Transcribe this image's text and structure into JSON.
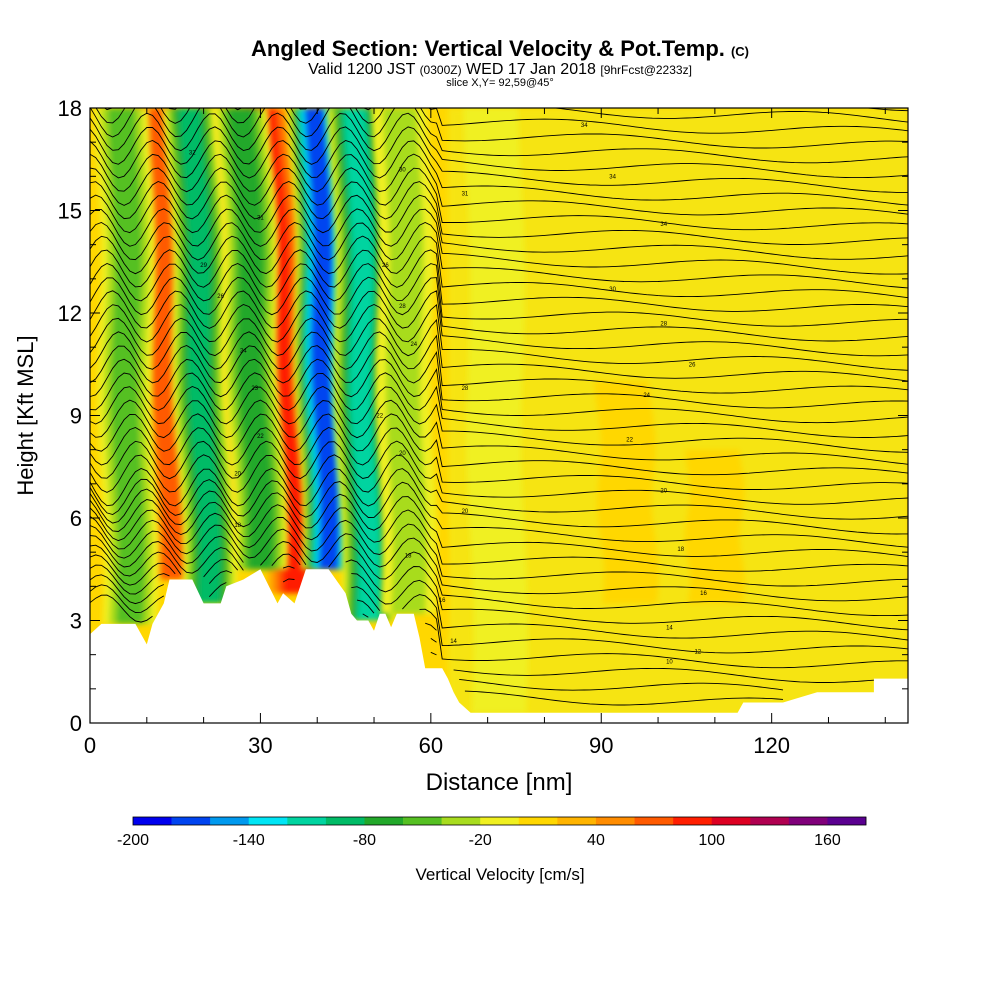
{
  "title": {
    "main": "Angled Section: Vertical Velocity & Pot.Temp.",
    "main_unit": "(C)",
    "valid_prefix": "Valid 1200 JST",
    "valid_utc": "(0300Z)",
    "valid_date": "WED 17 Jan 2018",
    "forecast": "[9hrFcst@2233z]",
    "slice": "slice X,Y= 92,59@45°"
  },
  "chart_data": {
    "type": "heatmap",
    "xlabel": "Distance [nm]",
    "ylabel": "Height [Kft MSL]",
    "xlim": [
      0,
      144
    ],
    "ylim": [
      0,
      18
    ],
    "xticks": [
      0,
      30,
      60,
      90,
      120
    ],
    "yticks": [
      0,
      3,
      6,
      9,
      12,
      15,
      18
    ],
    "colorbar": {
      "label": "Vertical Velocity [cm/s]",
      "tick_values": [
        -200,
        -140,
        -80,
        -20,
        40,
        100,
        160
      ],
      "colors": [
        "#0000ee",
        "#0044f0",
        "#0099ee",
        "#00e5f5",
        "#00d4a0",
        "#00bb66",
        "#22a82a",
        "#55c022",
        "#a8dc1e",
        "#f0f020",
        "#ffd700",
        "#ffb400",
        "#ff8c00",
        "#ff5a00",
        "#ff1e00",
        "#dd0022",
        "#b00050",
        "#80007a",
        "#5a0090"
      ],
      "bin_start": -200,
      "bin_step": 20
    },
    "terrain_kft": [
      [
        0,
        2.6
      ],
      [
        2,
        2.9
      ],
      [
        8,
        2.9
      ],
      [
        10,
        2.3
      ],
      [
        11,
        2.9
      ],
      [
        13,
        3.5
      ],
      [
        14,
        4.2
      ],
      [
        18,
        4.2
      ],
      [
        20,
        3.5
      ],
      [
        23,
        3.5
      ],
      [
        24,
        4.0
      ],
      [
        27,
        4.2
      ],
      [
        30,
        4.5
      ],
      [
        33,
        3.5
      ],
      [
        34,
        3.8
      ],
      [
        36,
        3.5
      ],
      [
        38,
        4.5
      ],
      [
        42,
        4.5
      ],
      [
        45,
        3.8
      ],
      [
        46,
        3.2
      ],
      [
        47,
        3.0
      ],
      [
        49,
        3.0
      ],
      [
        50,
        2.7
      ],
      [
        51,
        3.2
      ],
      [
        52,
        3.2
      ],
      [
        53,
        2.8
      ],
      [
        54,
        3.2
      ],
      [
        57,
        3.2
      ],
      [
        58,
        2.5
      ],
      [
        59,
        1.6
      ],
      [
        62,
        1.6
      ],
      [
        63,
        1.3
      ],
      [
        64,
        0.9
      ],
      [
        65,
        0.6
      ],
      [
        67,
        0.3
      ],
      [
        72,
        0.3
      ],
      [
        80,
        0.3
      ],
      [
        85,
        0.3
      ],
      [
        90,
        0.3
      ],
      [
        110,
        0.3
      ],
      [
        114,
        0.3
      ],
      [
        115,
        0.6
      ],
      [
        122,
        0.6
      ],
      [
        128,
        0.9
      ],
      [
        138,
        0.9
      ],
      [
        138,
        1.3
      ],
      [
        144,
        1.3
      ]
    ],
    "updraft_bands": [
      {
        "x": 15,
        "x_top": 12,
        "ybot": 4.2,
        "ytop": 18,
        "w": 80
      },
      {
        "x": 26,
        "x_top": 23,
        "ybot": 5.0,
        "ytop": 18,
        "w": 40
      },
      {
        "x": 36,
        "x_top": 31,
        "ybot": 3.8,
        "ytop": 18,
        "w": 95
      },
      {
        "x": 52,
        "x_top": 50,
        "ybot": 3.2,
        "ytop": 18,
        "w": 30
      },
      {
        "x": 58,
        "x_top": 56,
        "ybot": 2.5,
        "ytop": 18,
        "w": 15
      },
      {
        "x": 95,
        "x_top": 94,
        "ybot": 3.5,
        "ytop": 10,
        "w": 12
      },
      {
        "x": 110,
        "x_top": 110,
        "ybot": 3.5,
        "ytop": 8,
        "w": 10
      }
    ],
    "downdraft_bands": [
      {
        "x": 7,
        "x_top": 6,
        "ybot": 2.9,
        "ytop": 18,
        "w": -60
      },
      {
        "x": 21,
        "x_top": 18,
        "ybot": 3.5,
        "ytop": 18,
        "w": -100
      },
      {
        "x": 30,
        "x_top": 27,
        "ybot": 4.5,
        "ytop": 18,
        "w": -80
      },
      {
        "x": 42,
        "x_top": 40,
        "ybot": 4.5,
        "ytop": 18,
        "w": -170
      },
      {
        "x": 49,
        "x_top": 47,
        "ybot": 3.0,
        "ytop": 18,
        "w": -110
      },
      {
        "x": 56,
        "x_top": 55,
        "ybot": 3.2,
        "ytop": 18,
        "w": -40
      },
      {
        "x": 72,
        "x_top": 71,
        "ybot": 0.3,
        "ytop": 18,
        "w": -20
      }
    ],
    "isentrope_labels": [
      {
        "x": 87,
        "y": 17.5,
        "text": "34"
      },
      {
        "x": 92,
        "y": 16.0,
        "text": "34"
      },
      {
        "x": 66,
        "y": 15.5,
        "text": "31"
      },
      {
        "x": 101,
        "y": 14.6,
        "text": "34"
      },
      {
        "x": 55,
        "y": 16.2,
        "text": "30"
      },
      {
        "x": 92,
        "y": 12.7,
        "text": "30"
      },
      {
        "x": 101,
        "y": 11.7,
        "text": "28"
      },
      {
        "x": 106,
        "y": 10.5,
        "text": "26"
      },
      {
        "x": 98,
        "y": 9.6,
        "text": "24"
      },
      {
        "x": 95,
        "y": 8.3,
        "text": "22"
      },
      {
        "x": 101,
        "y": 6.8,
        "text": "20"
      },
      {
        "x": 104,
        "y": 5.1,
        "text": "18"
      },
      {
        "x": 108,
        "y": 3.8,
        "text": "16"
      },
      {
        "x": 102,
        "y": 2.8,
        "text": "14"
      },
      {
        "x": 107,
        "y": 2.1,
        "text": "12"
      },
      {
        "x": 102,
        "y": 1.8,
        "text": "10"
      },
      {
        "x": 66,
        "y": 9.8,
        "text": "28"
      },
      {
        "x": 66,
        "y": 6.2,
        "text": "20"
      },
      {
        "x": 56,
        "y": 4.9,
        "text": "18"
      },
      {
        "x": 62,
        "y": 3.6,
        "text": "16"
      },
      {
        "x": 64,
        "y": 2.4,
        "text": "14"
      },
      {
        "x": 18,
        "y": 16.7,
        "text": "32"
      },
      {
        "x": 30,
        "y": 14.8,
        "text": "31"
      },
      {
        "x": 20,
        "y": 13.4,
        "text": "29"
      },
      {
        "x": 23,
        "y": 12.5,
        "text": "26"
      },
      {
        "x": 27,
        "y": 10.9,
        "text": "24"
      },
      {
        "x": 29,
        "y": 9.8,
        "text": "23"
      },
      {
        "x": 30,
        "y": 8.4,
        "text": "22"
      },
      {
        "x": 26,
        "y": 7.3,
        "text": "20"
      },
      {
        "x": 26,
        "y": 5.8,
        "text": "18"
      },
      {
        "x": 55,
        "y": 12.2,
        "text": "28"
      },
      {
        "x": 52,
        "y": 13.4,
        "text": "26"
      },
      {
        "x": 57,
        "y": 11.1,
        "text": "24"
      },
      {
        "x": 51,
        "y": 9.0,
        "text": "22"
      },
      {
        "x": 55,
        "y": 7.9,
        "text": "20"
      }
    ]
  }
}
